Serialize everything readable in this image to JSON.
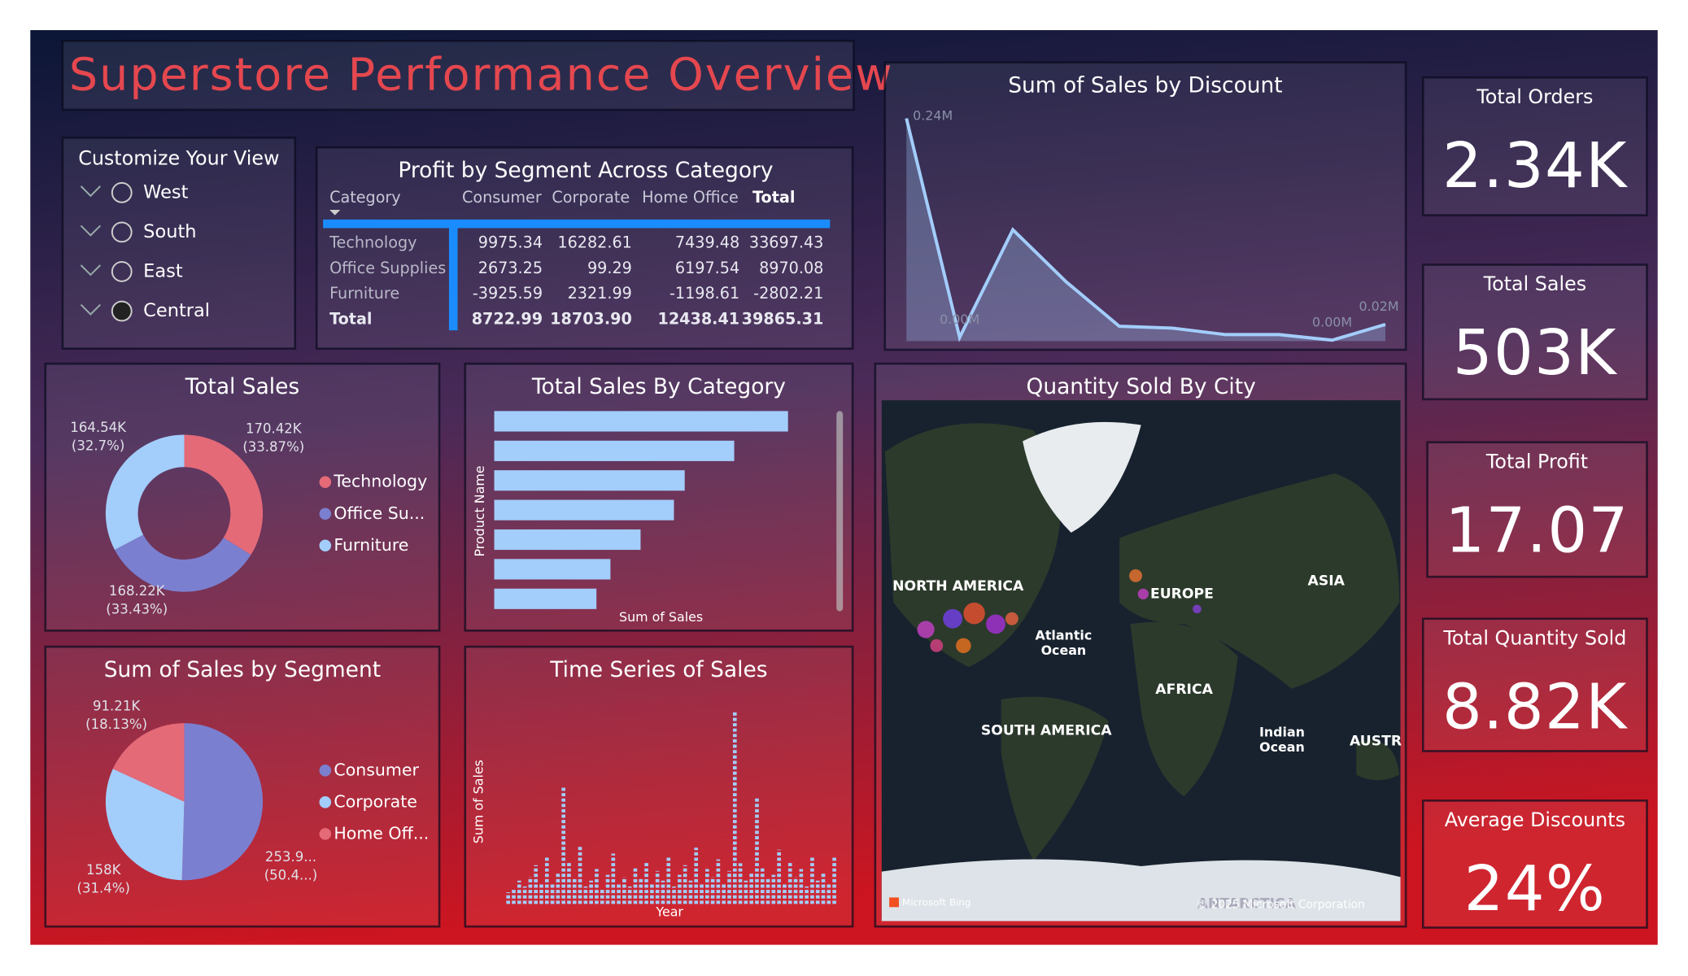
{
  "title": "Superstore Performance Overview",
  "slicer": {
    "title": "Customize Your View",
    "items": [
      "West",
      "South",
      "East",
      "Central"
    ]
  },
  "table": {
    "title": "Profit by Segment Across Category",
    "header": [
      "Category",
      "Consumer",
      "Corporate",
      "Home Office",
      "Total"
    ],
    "rows": [
      [
        "Technology",
        "9975.34",
        "16282.61",
        "7439.48",
        "33697.43"
      ],
      [
        "Office Supplies",
        "2673.25",
        "99.29",
        "6197.54",
        "8970.08"
      ],
      [
        "Furniture",
        "-3925.59",
        "2321.99",
        "-1198.61",
        "-2802.21"
      ],
      [
        "Total",
        "8722.99",
        "18703.90",
        "12438.41",
        "39865.31"
      ]
    ]
  },
  "cards": [
    {
      "label": "Total Orders",
      "value": "2.34K"
    },
    {
      "label": "Total Sales",
      "value": "503K"
    },
    {
      "label": "Total Profit",
      "value": "17.07"
    },
    {
      "label": "Total Quantity Sold",
      "value": "8.82K"
    },
    {
      "label": "Average Discounts",
      "value": "24%"
    }
  ],
  "chart_data": [
    {
      "type": "area",
      "title": "Sum of Sales by Discount",
      "categories": [
        null,
        null,
        null,
        null,
        null,
        null,
        null,
        null,
        null,
        null
      ],
      "values": [
        0.24,
        0.004,
        0.12,
        0.064,
        0.016,
        0.014,
        0.007,
        0.007,
        0.001,
        0.018
      ],
      "value_labels": [
        "0.24M",
        "0.00M",
        null,
        null,
        null,
        null,
        null,
        null,
        "0.00M",
        "0.02M"
      ],
      "color": "#a3cdfb"
    },
    {
      "type": "donut",
      "title": "Total Sales",
      "categories": [
        "Technology",
        "Office Su...",
        "Furniture"
      ],
      "values": [
        170.42,
        168.22,
        164.54
      ],
      "value_labels": [
        "170.42K",
        "168.22K",
        "164.54K"
      ],
      "percents": [
        33.87,
        33.43,
        32.7
      ],
      "percent_labels": [
        "(33.87%)",
        "(33.43%)",
        "(32.7%)"
      ],
      "colors": [
        "#e46a78",
        "#7b7fcf",
        "#a3cdfb"
      ]
    },
    {
      "type": "hbar",
      "title": "Total Sales By Category",
      "y_label": "Product Name",
      "x_label": "Sum of Sales",
      "categories": [
        null,
        null,
        null,
        null,
        null,
        null,
        null
      ],
      "values": [
        273,
        223,
        177,
        167,
        136,
        108,
        95
      ],
      "color": "#a3cdfb"
    },
    {
      "type": "pie",
      "title": "Sum of Sales by Segment",
      "categories": [
        "Consumer",
        "Corporate",
        "Home Off..."
      ],
      "values": [
        253.9,
        158,
        91.21
      ],
      "value_labels": [
        "253.9...",
        "158K",
        "91.21K"
      ],
      "percents": [
        50.4,
        31.4,
        18.13
      ],
      "percent_labels": [
        "(50.4...)",
        "(31.4%)",
        "(18.13%)"
      ],
      "colors": [
        "#7b7fcf",
        "#a3cdfb",
        "#e46a78"
      ]
    },
    {
      "type": "spike",
      "title": "Time Series of Sales",
      "y_label": "Sum of Sales",
      "x_label": "Year",
      "values": [
        6,
        8,
        12,
        9,
        14,
        20,
        10,
        24,
        11,
        16,
        61,
        22,
        13,
        30,
        9,
        12,
        18,
        8,
        15,
        26,
        11,
        14,
        9,
        19,
        13,
        22,
        10,
        17,
        12,
        24,
        9,
        15,
        20,
        12,
        29,
        11,
        18,
        14,
        23,
        10,
        17,
        100,
        21,
        12,
        16,
        55,
        19,
        13,
        15,
        28,
        11,
        22,
        14,
        18,
        9,
        25,
        12,
        16,
        10,
        24
      ],
      "color": "#a3cdfb"
    }
  ],
  "map": {
    "title": "Quantity Sold By City",
    "labels": [
      "NORTH AMERICA",
      "EUROPE",
      "ASIA",
      "Atlantic",
      "Ocean",
      "AFRICA",
      "SOUTH AMERICA",
      "Indian",
      "Ocean",
      "AUSTR",
      "ANTARCTICA"
    ],
    "credits": [
      "Microsoft Bing",
      "© 2025 Microsoft Corporation"
    ]
  }
}
